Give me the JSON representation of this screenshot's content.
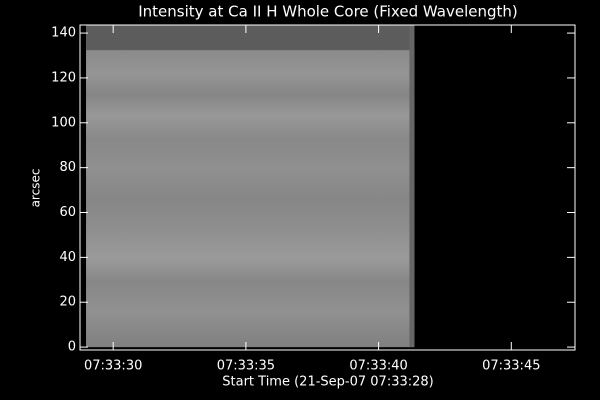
{
  "chart_data": {
    "type": "image",
    "title": "Intensity at Ca II H Whole Core (Fixed Wavelength)",
    "xlabel": "Start Time (21-Sep-07 07:33:28)",
    "ylabel": "arcsec",
    "xlim": [
      28.75,
      47.4
    ],
    "ylim": [
      -1.3,
      143.6
    ],
    "xticks": [
      {
        "value": 30,
        "label": "07:33:30"
      },
      {
        "value": 35,
        "label": "07:33:35"
      },
      {
        "value": 40,
        "label": "07:33:40"
      },
      {
        "value": 45,
        "label": "07:33:45"
      }
    ],
    "yticks": [
      0,
      20,
      40,
      60,
      80,
      100,
      120,
      140
    ],
    "extent": {
      "x": [
        28.98,
        41.35
      ],
      "y": [
        0,
        143.6
      ],
      "band_y": [
        132.4,
        143.6
      ]
    },
    "color": "#8c8c8c",
    "band_color": "#5c5c5c"
  }
}
